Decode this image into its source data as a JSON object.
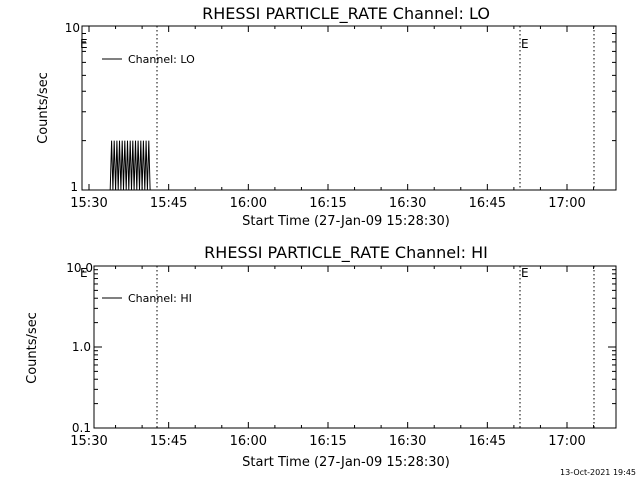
{
  "chart_data": [
    {
      "type": "line",
      "title": "RHESSI PARTICLE_RATE Channel: LO",
      "xlabel": "Start Time (27-Jan-09 15:28:30)",
      "ylabel": "Counts/sec",
      "yscale": "log",
      "ylim": [
        1,
        10
      ],
      "ytick_labels": [
        "1",
        "10"
      ],
      "xticks": [
        "15:30",
        "15:45",
        "16:00",
        "16:15",
        "16:30",
        "16:45",
        "17:00"
      ],
      "legend": {
        "placement": "top-left",
        "entries": [
          "Channel: LO"
        ]
      },
      "event_markers": [
        "E",
        "E"
      ],
      "series": [
        {
          "name": "Channel: LO",
          "x": [
            "15:34:00",
            "15:34:15",
            "15:34:30",
            "15:34:45",
            "15:35:00",
            "15:35:15",
            "15:35:30",
            "15:35:45",
            "15:36:00",
            "15:36:15",
            "15:36:30",
            "15:36:45",
            "15:37:00",
            "15:37:15",
            "15:37:30",
            "15:37:45",
            "15:38:00",
            "15:38:15",
            "15:38:30",
            "15:38:45",
            "15:39:00",
            "15:39:15",
            "15:39:30",
            "15:39:45",
            "15:40:00",
            "15:40:15",
            "15:40:30",
            "15:40:45",
            "15:41:00",
            "15:41:15",
            "15:41:30"
          ],
          "y": [
            1,
            2,
            1,
            2,
            1,
            2,
            1,
            2,
            1,
            2,
            1,
            2,
            1,
            2,
            1,
            2,
            1,
            2,
            1,
            2,
            1,
            2,
            1,
            2,
            1,
            2,
            1,
            2,
            1,
            2,
            1
          ]
        }
      ]
    },
    {
      "type": "line",
      "title": "RHESSI PARTICLE_RATE Channel: HI",
      "xlabel": "Start Time (27-Jan-09 15:28:30)",
      "ylabel": "Counts/sec",
      "yscale": "log",
      "ylim": [
        0.1,
        10
      ],
      "ytick_labels": [
        "0.1",
        "1.0",
        "10.0"
      ],
      "xticks": [
        "15:30",
        "15:45",
        "16:00",
        "16:15",
        "16:30",
        "16:45",
        "17:00"
      ],
      "legend": {
        "placement": "top-left",
        "entries": [
          "Channel: HI"
        ]
      },
      "event_markers": [
        "E",
        "E"
      ],
      "series": [
        {
          "name": "Channel: HI",
          "x": [],
          "y": []
        }
      ]
    }
  ],
  "footer": {
    "timestamp": "13-Oct-2021 19:45"
  }
}
